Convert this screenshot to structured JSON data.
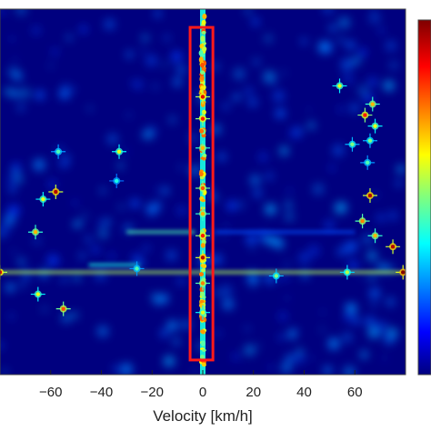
{
  "chart_data": {
    "type": "heatmap",
    "title": "",
    "xlabel": "Velocity [km/h]",
    "ylabel": "",
    "xlim": [
      -80,
      80
    ],
    "x_ticks": [
      -60,
      -40,
      -20,
      0,
      20,
      40,
      60
    ],
    "x_tick_labels": [
      "−60",
      "−40",
      "−20",
      "0",
      "20",
      "40",
      "60"
    ],
    "colormap": "jet",
    "colors": {
      "background": "#00007f",
      "highlight_box": "#ff1a1a",
      "axes": "#222222"
    },
    "highlight_box": {
      "x_range": [
        -5,
        4
      ],
      "y_range": [
        0.05,
        0.96
      ],
      "note": "zero-velocity column"
    },
    "colorbar": {
      "visible": true,
      "tick_labels_visible": false
    },
    "peaks": [
      {
        "x": 0,
        "y": 0.24,
        "v": 0.9
      },
      {
        "x": 0,
        "y": 0.3,
        "v": 0.85
      },
      {
        "x": 0,
        "y": 0.38,
        "v": 0.7
      },
      {
        "x": 0,
        "y": 0.49,
        "v": 0.8
      },
      {
        "x": 0,
        "y": 0.56,
        "v": 0.7
      },
      {
        "x": 0,
        "y": 0.62,
        "v": 0.85
      },
      {
        "x": 0,
        "y": 0.68,
        "v": 0.95
      },
      {
        "x": 0,
        "y": 0.75,
        "v": 0.75
      },
      {
        "x": 0,
        "y": 0.83,
        "v": 0.6
      },
      {
        "x": -58,
        "y": 0.5,
        "v": 0.95
      },
      {
        "x": -63,
        "y": 0.52,
        "v": 0.6
      },
      {
        "x": -66,
        "y": 0.61,
        "v": 0.7
      },
      {
        "x": -80,
        "y": 0.72,
        "v": 0.9
      },
      {
        "x": -65,
        "y": 0.78,
        "v": 0.6
      },
      {
        "x": -55,
        "y": 0.82,
        "v": 0.8
      },
      {
        "x": -33,
        "y": 0.39,
        "v": 0.6
      },
      {
        "x": -34,
        "y": 0.47,
        "v": 0.4
      },
      {
        "x": -57,
        "y": 0.39,
        "v": 0.45
      },
      {
        "x": -26,
        "y": 0.71,
        "v": 0.45
      },
      {
        "x": 29,
        "y": 0.73,
        "v": 0.5
      },
      {
        "x": 54,
        "y": 0.21,
        "v": 0.6
      },
      {
        "x": 64,
        "y": 0.29,
        "v": 0.85
      },
      {
        "x": 67,
        "y": 0.26,
        "v": 0.7
      },
      {
        "x": 68,
        "y": 0.32,
        "v": 0.6
      },
      {
        "x": 66,
        "y": 0.36,
        "v": 0.5
      },
      {
        "x": 65,
        "y": 0.42,
        "v": 0.45
      },
      {
        "x": 66,
        "y": 0.51,
        "v": 0.95
      },
      {
        "x": 63,
        "y": 0.58,
        "v": 0.75
      },
      {
        "x": 68,
        "y": 0.62,
        "v": 0.7
      },
      {
        "x": 75,
        "y": 0.65,
        "v": 0.95
      },
      {
        "x": 79,
        "y": 0.72,
        "v": 1.0
      },
      {
        "x": 57,
        "y": 0.72,
        "v": 0.55
      },
      {
        "x": 59,
        "y": 0.37,
        "v": 0.5
      }
    ],
    "streaks": [
      {
        "x_from": -80,
        "x_to": 80,
        "y": 0.72,
        "v": 0.55
      },
      {
        "x_from": -30,
        "x_to": -3,
        "y": 0.61,
        "v": 0.45
      },
      {
        "x_from": -45,
        "x_to": -25,
        "y": 0.7,
        "v": 0.4
      },
      {
        "x_from": 5,
        "x_to": 60,
        "y": 0.61,
        "v": 0.2
      }
    ]
  }
}
